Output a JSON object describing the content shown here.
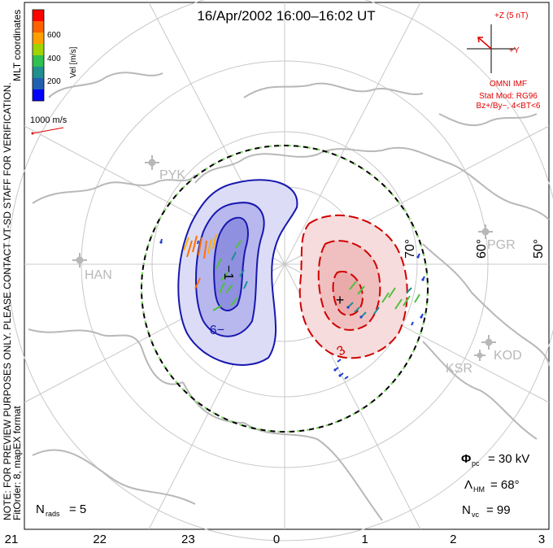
{
  "title": "16/Apr/2002  16:00–16:02 UT",
  "side_note": {
    "line1": "NOTE: FOR PREVIEW PURPOSES ONLY. PLEASE CONTACT VT-SD STAFF FOR VERIFICATION.",
    "line2": "FitOrder: 8, mapEX format"
  },
  "coordinates_label": "MLT coordinates",
  "colorbar": {
    "label": "Vel [m/s]",
    "ticks": [
      "600",
      "400",
      "200"
    ],
    "colors": [
      "#ff0000",
      "#ff6000",
      "#ffa000",
      "#9fd400",
      "#30c050",
      "#1f8f8f",
      "#2060b0",
      "#0000ff"
    ]
  },
  "vector_scale": "1000 m/s",
  "imf": {
    "z_label": "+Z (5 nT)",
    "y_label": "+Y",
    "source": "OMNI IMF",
    "model": "Stat Mod: RG96",
    "condition": "Bz+/By−, 4<BT<6"
  },
  "stations": {
    "pyk": "PYK",
    "han": "HAN",
    "pgr": "PGR",
    "ksr": "KSR",
    "kod": "KOD"
  },
  "latitude_labels": {
    "lat70": "70°",
    "lat60": "60°",
    "lat50": "50°"
  },
  "contour_labels": {
    "neg": "−1",
    "neg9": "−9",
    "pos3": "3"
  },
  "mlt_axis": [
    "21",
    "22",
    "23",
    "0",
    "1",
    "2",
    "3"
  ],
  "stats": {
    "phi_sym": "Φ",
    "phi_sub": "pc",
    "phi_value": "= 30 kV",
    "lambda_sym": "Λ",
    "lambda_sub": "HM",
    "lambda_value": "= 68°",
    "nvc_sym": "N",
    "nvc_sub": "vc",
    "nvc_value": "= 99",
    "nrads_sym": "N",
    "nrads_sub": "rads",
    "nrads_value": "= 5"
  },
  "colors": {
    "dusk_cell": "#8080e0",
    "dawn_cell": "#f0a0a0",
    "neg_contour": "#1818b0",
    "pos_contour": "#d00000",
    "continents": "#b8b8b8",
    "grid": "#c8c8c8"
  }
}
